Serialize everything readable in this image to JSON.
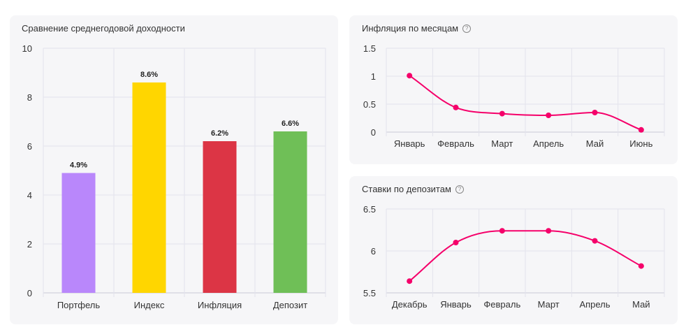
{
  "chart_data": [
    {
      "type": "bar",
      "title": "Сравнение среднегодовой доходности",
      "categories": [
        "Портфель",
        "Индекс",
        "Инфляция",
        "Депозит"
      ],
      "values": [
        4.9,
        8.6,
        6.2,
        6.6
      ],
      "value_labels": [
        "4.9%",
        "8.6%",
        "6.2%",
        "6.6%"
      ],
      "colors": [
        "#b987fb",
        "#ffd600",
        "#dc3545",
        "#6fbf57"
      ],
      "y_ticks": [
        "0",
        "2",
        "4",
        "6",
        "8",
        "10"
      ],
      "ylim": [
        0,
        10
      ],
      "grid": true,
      "legend": "none"
    },
    {
      "type": "line",
      "title": "Инфляция по месяцам",
      "categories": [
        "Январь",
        "Февраль",
        "Март",
        "Апрель",
        "Май",
        "Июнь"
      ],
      "values": [
        1.01,
        0.44,
        0.33,
        0.3,
        0.35,
        0.04
      ],
      "y_ticks": [
        "0",
        "0.5",
        "1",
        "1.5"
      ],
      "ylim": [
        0,
        1.5
      ],
      "color": "#f5006a",
      "grid": true,
      "legend": "none"
    },
    {
      "type": "line",
      "title": "Ставки по депозитам",
      "categories": [
        "Декабрь",
        "Январь",
        "Февраль",
        "Март",
        "Апрель",
        "Май"
      ],
      "values": [
        5.64,
        6.1,
        6.24,
        6.24,
        6.12,
        5.82
      ],
      "y_ticks": [
        "5.5",
        "6",
        "6.5"
      ],
      "ylim": [
        5.5,
        6.5
      ],
      "color": "#f5006a",
      "grid": true,
      "legend": "none"
    }
  ],
  "help_icon": "?"
}
